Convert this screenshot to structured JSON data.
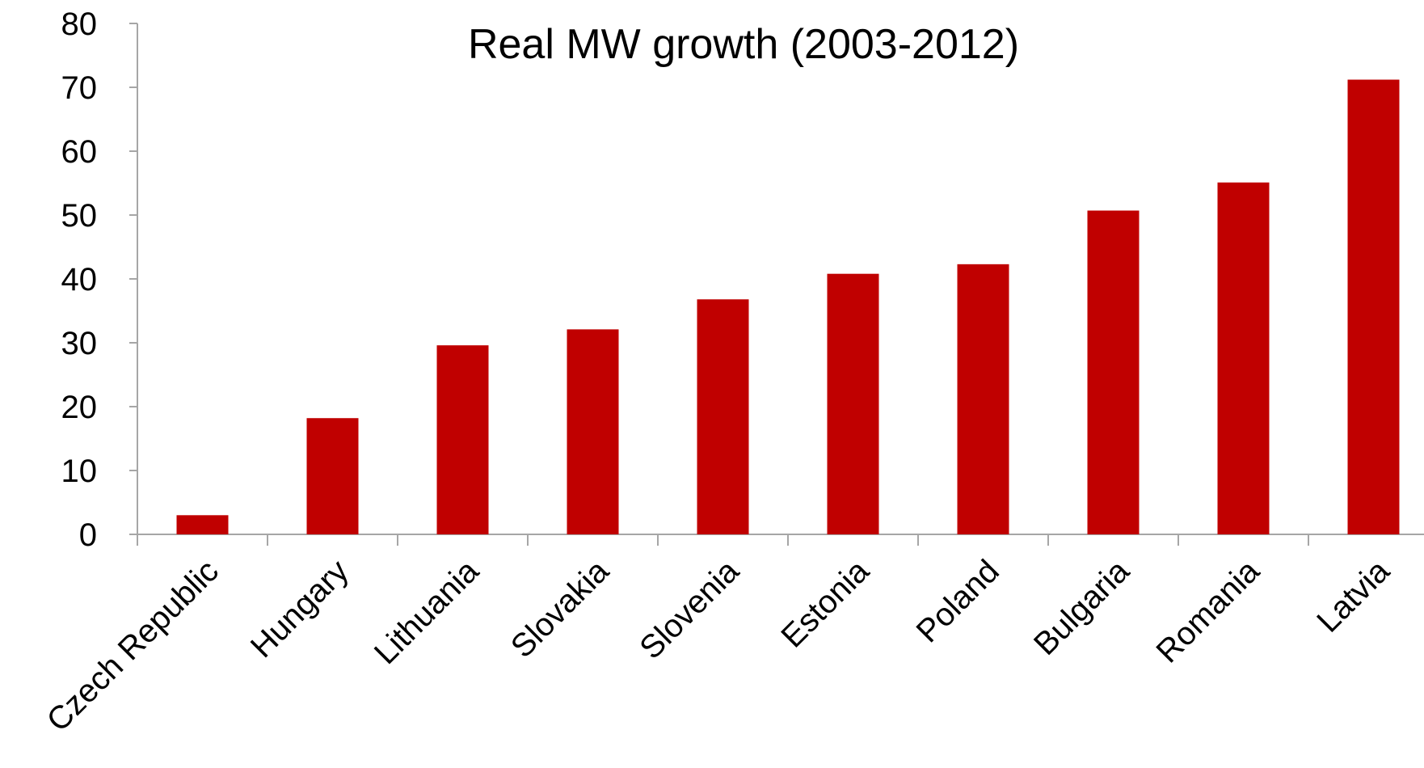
{
  "chart_data": {
    "type": "bar",
    "title": "Real MW growth (2003-2012)",
    "xlabel": "",
    "ylabel": "",
    "categories": [
      "Czech Republic",
      "Hungary",
      "Lithuania",
      "Slovakia",
      "Slovenia",
      "Estonia",
      "Poland",
      "Bulgaria",
      "Romania",
      "Latvia"
    ],
    "values": [
      3,
      18.2,
      29.6,
      32.1,
      36.8,
      40.8,
      42.3,
      50.7,
      55.1,
      71.2
    ],
    "ylim": [
      0,
      80
    ],
    "yticks": [
      "0",
      "10",
      "20",
      "30",
      "40",
      "50",
      "60",
      "70",
      "80"
    ],
    "grid": false,
    "legend": "none",
    "colors": {
      "bar": "#c00000",
      "axis": "#a6a6a6"
    }
  }
}
